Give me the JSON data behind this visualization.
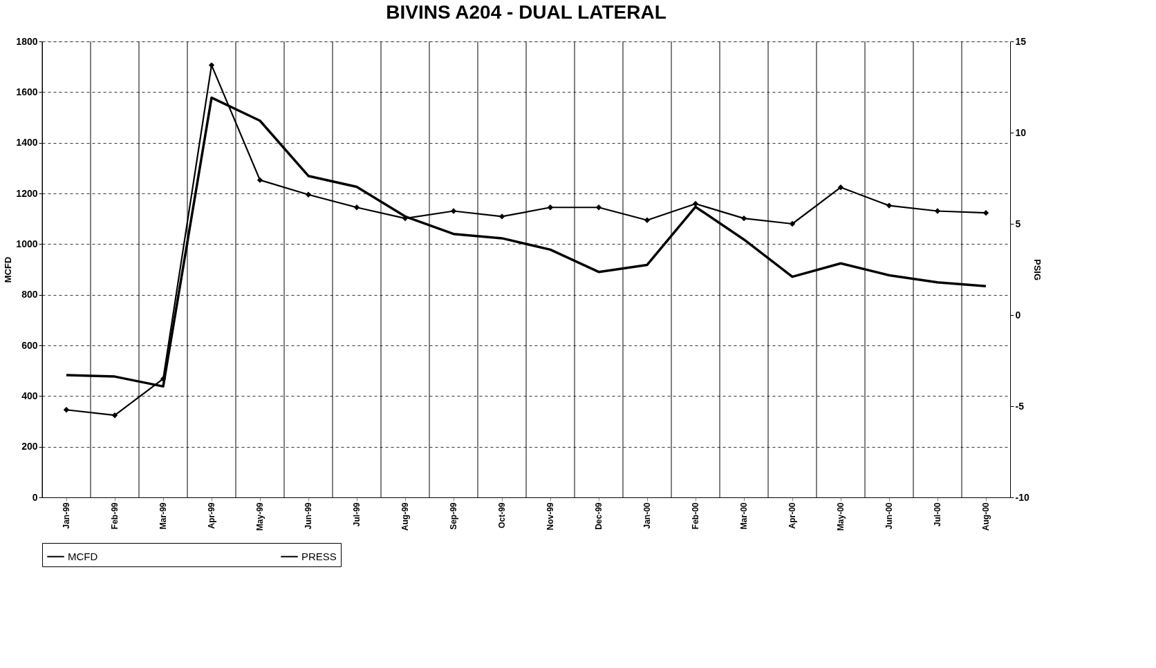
{
  "chart_data": {
    "type": "line",
    "title": "BIVINS A204  -  DUAL LATERAL",
    "ylabel": "MCFD",
    "y2label": "PSIG",
    "categories": [
      "Jan-99",
      "Feb-99",
      "Mar-99",
      "Apr-99",
      "May-99",
      "Jun-99",
      "Jul-99",
      "Aug-99",
      "Sep-99",
      "Oct-99",
      "Nov-99",
      "Dec-99",
      "Jan-00",
      "Feb-00",
      "Mar-00",
      "Apr-00",
      "May-00",
      "Jun-00",
      "Jul-00",
      "Aug-00"
    ],
    "series": [
      {
        "name": "MCFD",
        "color": "#000000",
        "marker": "none",
        "values": [
          483,
          477,
          438,
          1578,
          1487,
          1269,
          1226,
          1109,
          1040,
          1023,
          978,
          890,
          918,
          1147,
          1018,
          871,
          924,
          877,
          849,
          834
        ]
      },
      {
        "name": "PRESS",
        "color": "#000000",
        "marker": "diamond",
        "axis": "y2",
        "values": [
          -5.2,
          -5.5,
          -3.5,
          13.7,
          7.4,
          6.6,
          5.9,
          5.3,
          5.7,
          5.4,
          5.9,
          5.9,
          5.2,
          6.1,
          5.3,
          5.0,
          7.0,
          6.0,
          5.7,
          5.6
        ]
      }
    ],
    "ylim": [
      0,
      1800
    ],
    "yticks": [
      0,
      200,
      400,
      600,
      800,
      1000,
      1200,
      1400,
      1600,
      1800
    ],
    "y2lim": [
      -10,
      15
    ],
    "y2ticks": [
      -10,
      -5,
      0,
      5,
      10,
      15
    ],
    "grid": true,
    "legend": "bottom",
    "line_style": "solid"
  }
}
